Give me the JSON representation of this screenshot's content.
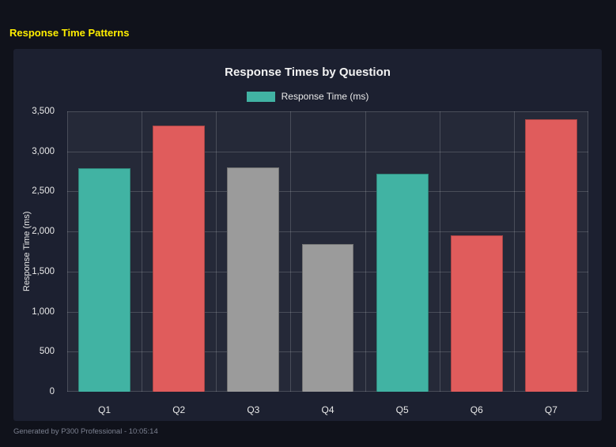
{
  "page": {
    "title": "Response Time Patterns"
  },
  "footer": {
    "text": "Generated by P300 Professional - 10:05:14"
  },
  "colors": {
    "accent_teal": "#41b3a3",
    "accent_red": "#e05c5c",
    "accent_gray": "#9b9b9b",
    "title_yellow": "#ffee00",
    "panel_bg": "#1c2030",
    "page_bg": "#10121b"
  },
  "chart_data": {
    "type": "bar",
    "title": "Response Times by Question",
    "legend_label": "Response Time (ms)",
    "legend_position": "top",
    "xlabel": "",
    "ylabel": "Response Time (ms)",
    "categories": [
      "Q1",
      "Q2",
      "Q3",
      "Q4",
      "Q5",
      "Q6",
      "Q7"
    ],
    "values": [
      2790,
      3320,
      2800,
      1840,
      2720,
      1950,
      3400
    ],
    "bar_colors": [
      "#41b3a3",
      "#e05c5c",
      "#9b9b9b",
      "#9b9b9b",
      "#41b3a3",
      "#e05c5c",
      "#e05c5c"
    ],
    "ylim": [
      0,
      3500
    ],
    "ytick_values": [
      0,
      500,
      1000,
      1500,
      2000,
      2500,
      3000,
      3500
    ],
    "ytick_labels": [
      "0",
      "500",
      "1,000",
      "1,500",
      "2,000",
      "2,500",
      "3,000",
      "3,500"
    ],
    "grid": true
  }
}
